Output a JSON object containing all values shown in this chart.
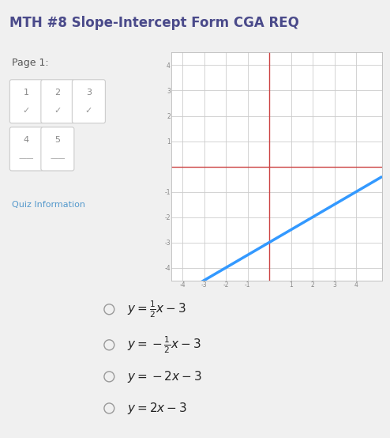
{
  "title": "MTH #8 Slope-Intercept Form CGA REQ",
  "title_fontsize": 12,
  "title_color": "#4a4a8a",
  "title_bg": "#ffffff",
  "background_color": "#f0f0f0",
  "page_label": "Page 1:",
  "quiz_info_label": "Quiz Information",
  "graph": {
    "xlim": [
      -4.5,
      5.2
    ],
    "ylim": [
      -4.5,
      4.5
    ],
    "xticks": [
      -4,
      -3,
      -2,
      -1,
      0,
      1,
      2,
      3,
      4
    ],
    "yticks": [
      -4,
      -3,
      -2,
      -1,
      0,
      1,
      2,
      3,
      4
    ],
    "axis_color": "#cc4444",
    "grid_color": "#cccccc",
    "line_slope": 0.5,
    "line_intercept": -3,
    "line_color": "#3399ff",
    "line_width": 2.5
  },
  "btn_row1": [
    "1",
    "2",
    "3"
  ],
  "btn_row2": [
    "4",
    "5"
  ],
  "btn_check_row1": [
    true,
    true,
    true
  ],
  "btn_check_row2": [
    false,
    false
  ],
  "choice_fontsize": 11,
  "choice_labels": [
    "$y = \\frac{1}{2}x - 3$",
    "$y = -\\frac{1}{2}x - 3$",
    "$y = -2x - 3$",
    "$y = 2x - 3$"
  ]
}
